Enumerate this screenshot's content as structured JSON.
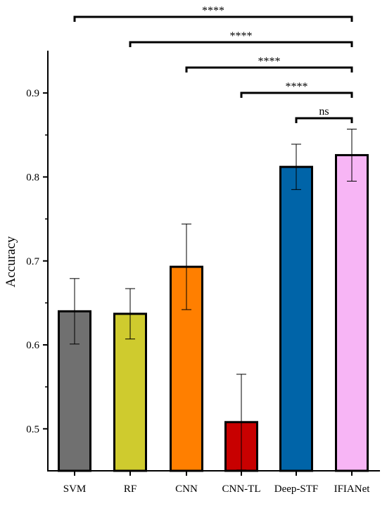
{
  "chart_data": {
    "type": "bar",
    "title": "",
    "xlabel": "",
    "ylabel": "Accuracy",
    "ylim": [
      0.45,
      0.95
    ],
    "yticks": [
      0.5,
      0.6,
      0.7,
      0.8,
      0.9
    ],
    "ytick_labels": [
      "0.5",
      "0.6",
      "0.7",
      "0.8",
      "0.9"
    ],
    "categories": [
      "SVM",
      "RF",
      "CNN",
      "CNN-TL",
      "Deep-STF",
      "IFIANet"
    ],
    "values": [
      0.64,
      0.637,
      0.693,
      0.508,
      0.812,
      0.826
    ],
    "error": [
      0.039,
      0.03,
      0.051,
      0.057,
      0.027,
      0.031
    ],
    "colors": [
      "#707070",
      "#CFCB2E",
      "#FF7F00",
      "#C80000",
      "#0064A8",
      "#F7B5F5"
    ],
    "grid": false,
    "comparisons": [
      {
        "from": "SVM",
        "to": "IFIANet",
        "label": "****"
      },
      {
        "from": "RF",
        "to": "IFIANet",
        "label": "****"
      },
      {
        "from": "CNN",
        "to": "IFIANet",
        "label": "****"
      },
      {
        "from": "CNN-TL",
        "to": "IFIANet",
        "label": "****"
      },
      {
        "from": "Deep-STF",
        "to": "IFIANet",
        "label": "ns"
      }
    ]
  }
}
